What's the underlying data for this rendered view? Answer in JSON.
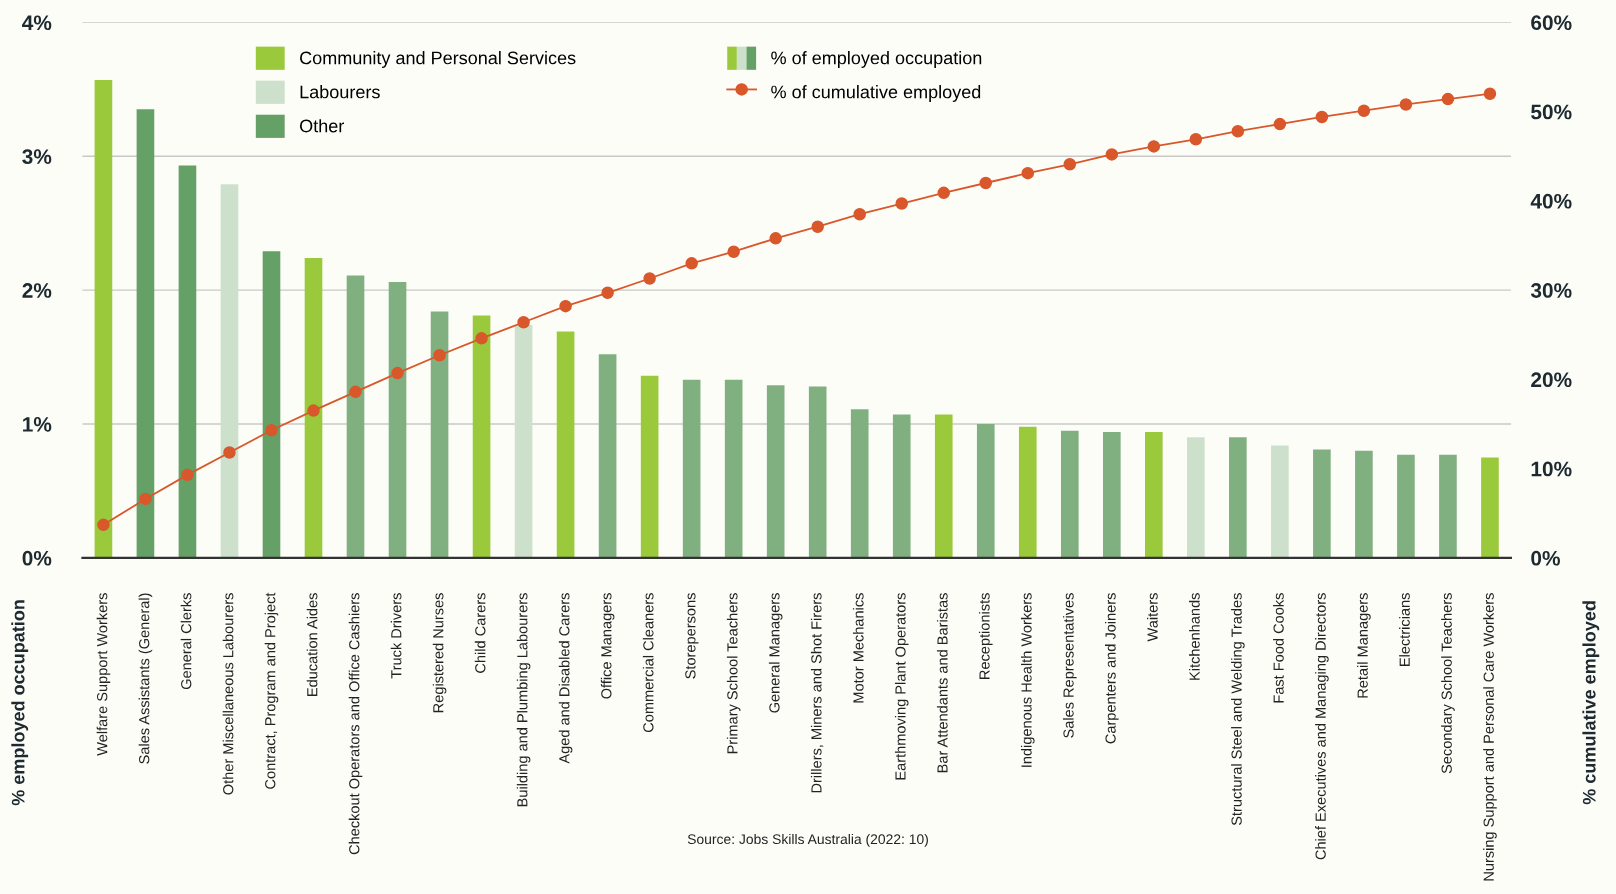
{
  "chart_data": {
    "type": "bar",
    "categories": [
      "Welfare Support Workers",
      "Sales Assistants (General)",
      "General Clerks",
      "Other Miscellaneous Labourers",
      "Contract, Program and Project",
      "Education Aides",
      "Checkout Operators and Office Cashiers",
      "Truck Drivers",
      "Registered Nurses",
      "Child Carers",
      "Building and Plumbing Labourers",
      "Aged and Disabled Carers",
      "Office Managers",
      "Commercial Cleaners",
      "Storepersons",
      "Primary School Teachers",
      "General Managers",
      "Drillers, Miners and Shot Firers",
      "Motor Mechanics",
      "Earthmoving Plant Operators",
      "Bar Attendants and Baristas",
      "Receptionists",
      "Indigenous Health Workers",
      "Sales Representatives",
      "Carpenters and Joiners",
      "Waiters",
      "Kitchenhands",
      "Structural Steel and Welding Trades",
      "Fast Food Cooks",
      "Chief Executives and Managing Directors",
      "Retail Managers",
      "Electricians",
      "Secondary School Teachers",
      "Nursing Support and Personal Care Workers"
    ],
    "series": [
      {
        "name": "Community and Personal Services",
        "color": "#9aca3c",
        "values": [
          3.57,
          null,
          null,
          null,
          null,
          2.24,
          null,
          null,
          null,
          1.81,
          null,
          1.69,
          null,
          1.36,
          null,
          null,
          null,
          null,
          null,
          null,
          1.07,
          null,
          0.98,
          null,
          null,
          0.94,
          null,
          null,
          null,
          null,
          null,
          null,
          null,
          0.75
        ]
      },
      {
        "name": "Labourers",
        "color": "#cde0cc",
        "values": [
          null,
          null,
          null,
          2.79,
          null,
          null,
          null,
          null,
          null,
          null,
          1.74,
          null,
          null,
          null,
          null,
          null,
          null,
          null,
          null,
          null,
          null,
          null,
          null,
          null,
          null,
          null,
          0.9,
          null,
          0.84,
          null,
          null,
          null,
          null,
          null
        ]
      },
      {
        "name": "Other",
        "color": "#65a067",
        "colors": [
          null,
          "#65a067",
          "#65a067",
          null,
          "#65a067",
          null,
          "#80b080",
          "#80b080",
          "#80b080",
          null,
          null,
          null,
          "#80b080",
          null,
          "#80b080",
          "#80b080",
          "#80b080",
          "#80b080",
          "#80b080",
          "#80b080",
          null,
          "#80b080",
          null,
          "#80b080",
          "#80b080",
          null,
          null,
          "#80b080",
          null,
          "#80b080",
          "#80b080",
          "#80b080",
          "#80b080",
          null
        ],
        "values": [
          null,
          3.35,
          2.93,
          null,
          2.29,
          null,
          2.11,
          2.06,
          1.84,
          null,
          null,
          null,
          1.52,
          null,
          1.33,
          1.33,
          1.29,
          1.28,
          1.11,
          1.07,
          null,
          1.0,
          null,
          0.95,
          0.94,
          null,
          null,
          0.9,
          null,
          0.81,
          0.8,
          0.77,
          0.77,
          null
        ]
      },
      {
        "name": "% of cumulative employed",
        "type": "line",
        "axis": "y2",
        "color": "#d9582b",
        "values": [
          3.7,
          6.6,
          9.3,
          11.8,
          14.3,
          16.5,
          18.6,
          20.7,
          22.7,
          24.6,
          26.4,
          28.2,
          29.7,
          31.3,
          33.0,
          34.3,
          35.8,
          37.1,
          38.5,
          39.7,
          40.9,
          42.0,
          43.1,
          44.1,
          45.2,
          46.1,
          46.9,
          47.8,
          48.6,
          49.4,
          50.1,
          50.8,
          51.4,
          52.0
        ]
      }
    ],
    "ylim": [
      0,
      4
    ],
    "yticks": [
      {
        "value": 0,
        "label": "0%"
      },
      {
        "value": 1,
        "label": "1%"
      },
      {
        "value": 2,
        "label": "2%"
      },
      {
        "value": 3,
        "label": "3%"
      },
      {
        "value": 4,
        "label": "4%"
      }
    ],
    "y2lim": [
      0,
      60
    ],
    "y2ticks": [
      {
        "value": 0,
        "label": "0%"
      },
      {
        "value": 10,
        "label": "10%"
      },
      {
        "value": 20,
        "label": "20%"
      },
      {
        "value": 30,
        "label": "30%"
      },
      {
        "value": 40,
        "label": "40%"
      },
      {
        "value": 50,
        "label": "50%"
      },
      {
        "value": 60,
        "label": "60%"
      }
    ],
    "ylabel": "% employed occupation",
    "y2label": "% cumulative employed",
    "grid": "y",
    "legend": "top",
    "marker": "circle",
    "line_style": "solid",
    "annotations": [
      "% of employed occupation",
      "Source: Jobs Skills Australia (2022: 10)"
    ]
  }
}
